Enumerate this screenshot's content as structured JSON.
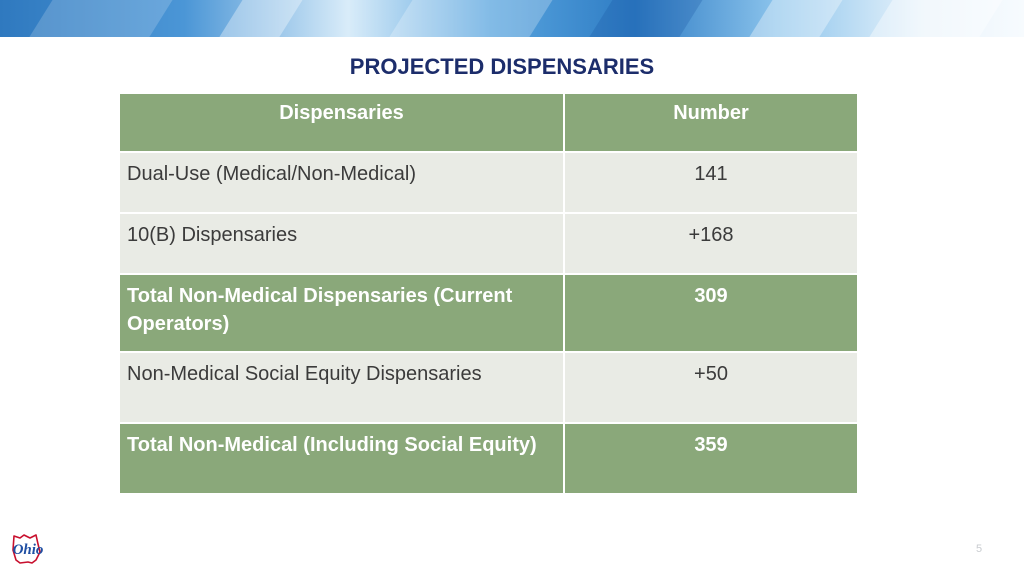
{
  "slide": {
    "title": "PROJECTED DISPENSARIES",
    "page_number": "5",
    "logo_text": "Ohio"
  },
  "table": {
    "headers": [
      "Dispensaries",
      "Number"
    ],
    "rows": [
      {
        "label": "Dual-Use (Medical/Non-Medical)",
        "value": "141",
        "style": "plain"
      },
      {
        "label": "10(B) Dispensaries",
        "value": "+168",
        "style": "plain"
      },
      {
        "label": "Total Non-Medical Dispensaries (Current Operators)",
        "value": "309",
        "style": "total"
      },
      {
        "label": "Non-Medical Social Equity Dispensaries",
        "value": "+50",
        "style": "plain"
      },
      {
        "label": "Total Non-Medical (Including Social Equity)",
        "value": "359",
        "style": "total"
      }
    ]
  },
  "colors": {
    "title": "#1c2d6b",
    "header_fill": "#8aa87a",
    "row_fill": "#e9ebe5",
    "logo_blue": "#1f4fa3",
    "logo_red": "#c8102e"
  }
}
